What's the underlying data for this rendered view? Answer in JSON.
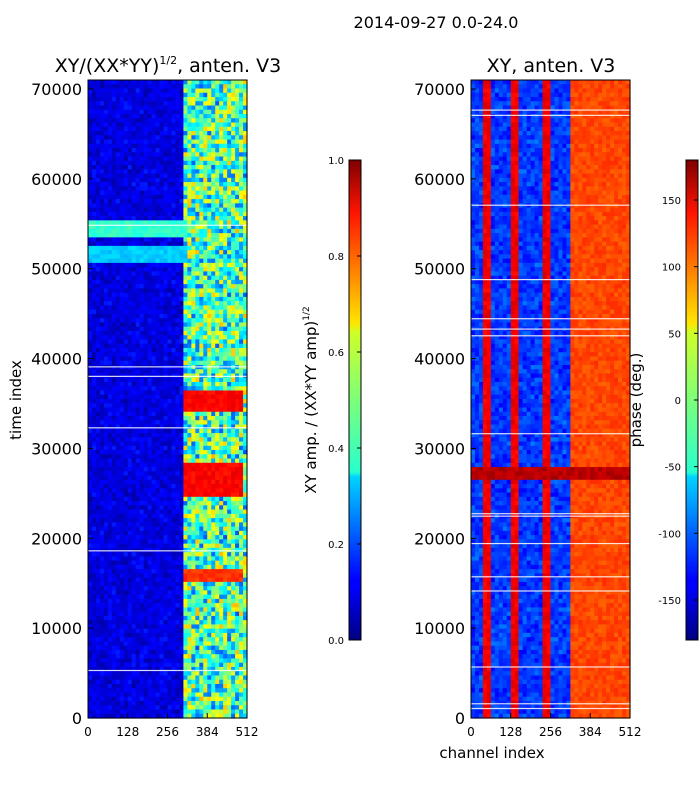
{
  "figure": {
    "title": "2014-09-27 0.0-24.0"
  },
  "chart_data": [
    {
      "type": "heatmap",
      "title": "XY/(XX*YY)",
      "title_sup": "1/2",
      "title_suffix": ", anten. V3",
      "xlabel": "",
      "ylabel": "time index",
      "x_ticks": [
        0,
        128,
        256,
        384,
        512
      ],
      "y_ticks": [
        0,
        10000,
        20000,
        30000,
        40000,
        50000,
        60000,
        70000
      ],
      "xlim": [
        0,
        512
      ],
      "ylim": [
        0,
        71000
      ],
      "colorbar": {
        "label": "XY amp. / (XX*YY amp)",
        "label_sup": "1/2",
        "ticks": [
          "0.0",
          "0.2",
          "0.4",
          "0.6",
          "0.8",
          "1.0"
        ],
        "range": [
          0.0,
          1.0
        ],
        "colormap": "jet"
      },
      "features": [
        {
          "desc": "high amplitude block",
          "x": [
            310,
            500
          ],
          "y": [
            24500,
            28500
          ],
          "value": 0.9
        },
        {
          "desc": "high amplitude block",
          "x": [
            310,
            500
          ],
          "y": [
            34000,
            36500
          ],
          "value": 0.9
        },
        {
          "desc": "high amplitude block",
          "x": [
            310,
            500
          ],
          "y": [
            15000,
            16500
          ],
          "value": 0.85
        },
        {
          "desc": "elevated band",
          "x": [
            0,
            320
          ],
          "y": [
            53500,
            55500
          ],
          "value": 0.45
        },
        {
          "desc": "elevated band",
          "x": [
            0,
            320
          ],
          "y": [
            50500,
            52500
          ],
          "value": 0.35
        }
      ]
    },
    {
      "type": "heatmap",
      "title": "XY, anten. V3",
      "xlabel": "channel index",
      "ylabel": "",
      "x_ticks": [
        0,
        128,
        256,
        384,
        512
      ],
      "y_ticks": [
        0,
        10000,
        20000,
        30000,
        40000,
        50000,
        60000,
        70000
      ],
      "xlim": [
        0,
        512
      ],
      "ylim": [
        0,
        71000
      ],
      "colorbar": {
        "label": "phase (deg.)",
        "ticks": [
          "-150",
          "-100",
          "-50",
          "0",
          "50",
          "100",
          "150"
        ],
        "range": [
          -180,
          180
        ],
        "colormap": "jet"
      },
      "features": [
        {
          "desc": "stripe",
          "x": [
            40,
            60
          ],
          "y": [
            0,
            71000
          ],
          "value": 150
        },
        {
          "desc": "stripe",
          "x": [
            130,
            150
          ],
          "y": [
            0,
            71000
          ],
          "value": 150
        },
        {
          "desc": "stripe",
          "x": [
            230,
            250
          ],
          "y": [
            0,
            71000
          ],
          "value": 150
        },
        {
          "desc": "striated block",
          "x": [
            320,
            512
          ],
          "y": [
            0,
            71000
          ],
          "value": 120
        },
        {
          "desc": "saturated row",
          "x": [
            0,
            512
          ],
          "y": [
            26500,
            28000
          ],
          "value": 170
        }
      ]
    }
  ]
}
